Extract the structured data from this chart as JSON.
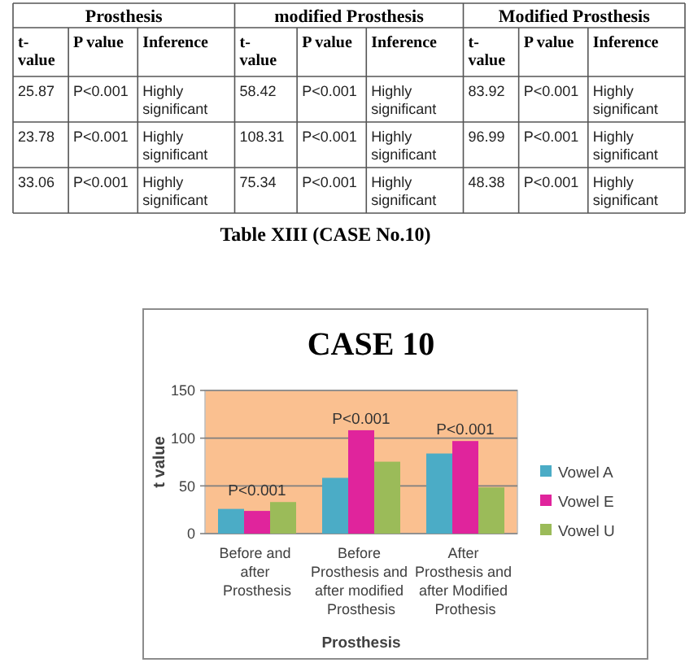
{
  "chart_data": [
    {
      "type": "other",
      "title": "Table XIII (CASE No.10)",
      "annotations": [
        "Prosthesis",
        "modified Prosthesis",
        "Modified Prosthesis"
      ],
      "categories": [
        "t-value",
        "P value",
        "Inference",
        "t-value",
        "P value",
        "Inference",
        "t-value",
        "P value",
        "Inference"
      ],
      "cell_labels": [
        [
          "25.87",
          "P<0.001",
          "Highly significant",
          "58.42",
          "P<0.001",
          "Highly significant",
          "83.92",
          "P<0.001",
          "Highly significant"
        ],
        [
          "23.78",
          "P<0.001",
          "Highly significant",
          "108.31",
          "P<0.001",
          "Highly significant",
          "96.99",
          "P<0.001",
          "Highly significant"
        ],
        [
          "33.06",
          "P<0.001",
          "Highly significant",
          "75.34",
          "P<0.001",
          "Highly significant",
          "48.38",
          "P<0.001",
          "Highly significant"
        ]
      ]
    },
    {
      "type": "bar",
      "title": "CASE 10",
      "xlabel": "Prosthesis",
      "ylabel": "t value",
      "categories": [
        "Before and after Prosthesis",
        "Before Prosthesis and after modified Prosthesis",
        "After Prosthesis and after Modified Prothesis"
      ],
      "series": [
        {
          "name": "Vowel A",
          "color": "#4bacc6",
          "values": [
            25.87,
            58.42,
            83.92
          ]
        },
        {
          "name": "Vowel E",
          "color": "#e0249c",
          "values": [
            23.78,
            108.31,
            96.99
          ]
        },
        {
          "name": "Vowel U",
          "color": "#9bbb59",
          "values": [
            33.06,
            75.34,
            48.38
          ]
        }
      ],
      "ylim": [
        0,
        150
      ],
      "yticks": [
        0,
        50,
        100,
        150
      ],
      "grid": "y",
      "legend": "right",
      "annotations": [
        "P<0.001",
        "P<0.001",
        "P<0.001"
      ]
    }
  ]
}
